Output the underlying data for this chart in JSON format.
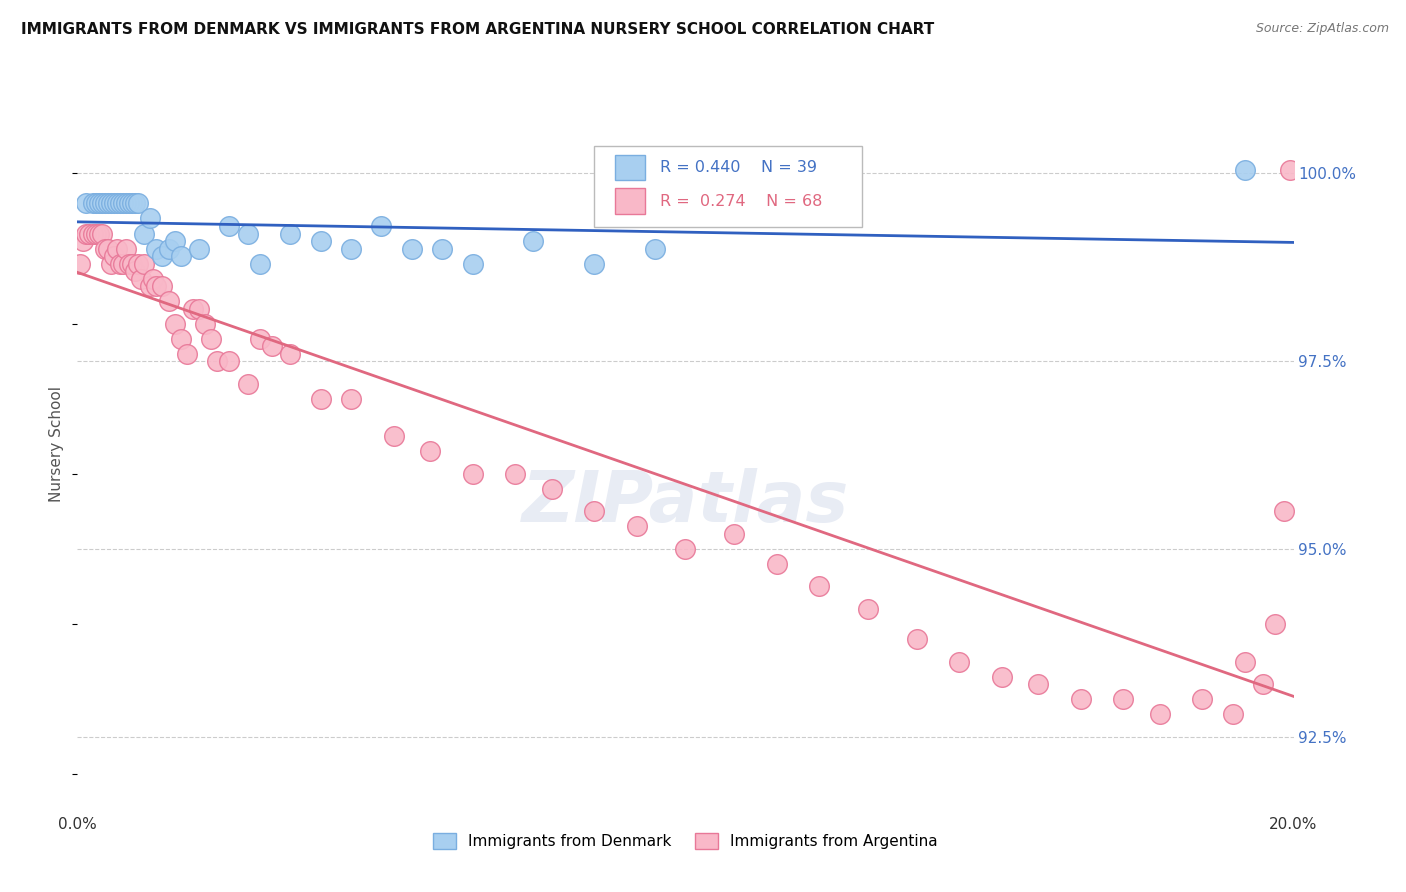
{
  "title": "IMMIGRANTS FROM DENMARK VS IMMIGRANTS FROM ARGENTINA NURSERY SCHOOL CORRELATION CHART",
  "source": "Source: ZipAtlas.com",
  "ylabel": "Nursery School",
  "yticks": [
    92.5,
    95.0,
    97.5,
    100.0
  ],
  "ytick_labels": [
    "92.5%",
    "95.0%",
    "97.5%",
    "100.0%"
  ],
  "xlim": [
    0.0,
    20.0
  ],
  "ylim": [
    91.5,
    101.3
  ],
  "denmark_color": "#a8cff0",
  "denmark_edge": "#7aaee0",
  "argentina_color": "#f9b8c8",
  "argentina_edge": "#e87898",
  "denmark_R": 0.44,
  "denmark_N": 39,
  "argentina_R": 0.274,
  "argentina_N": 68,
  "trend_denmark_color": "#3060c0",
  "trend_argentina_color": "#e06880",
  "denmark_x": [
    0.15,
    0.25,
    0.3,
    0.35,
    0.4,
    0.45,
    0.5,
    0.55,
    0.6,
    0.65,
    0.7,
    0.75,
    0.8,
    0.85,
    0.9,
    0.95,
    1.0,
    1.1,
    1.2,
    1.3,
    1.4,
    1.5,
    1.6,
    1.7,
    2.0,
    2.5,
    2.8,
    3.0,
    3.5,
    4.0,
    4.5,
    5.0,
    5.5,
    6.0,
    6.5,
    7.5,
    8.5,
    9.5,
    19.2
  ],
  "denmark_y": [
    99.6,
    99.6,
    99.6,
    99.6,
    99.6,
    99.6,
    99.6,
    99.6,
    99.6,
    99.6,
    99.6,
    99.6,
    99.6,
    99.6,
    99.6,
    99.6,
    99.6,
    99.2,
    99.4,
    99.0,
    98.9,
    99.0,
    99.1,
    98.9,
    99.0,
    99.3,
    99.2,
    98.8,
    99.2,
    99.1,
    99.0,
    99.3,
    99.0,
    99.0,
    98.8,
    99.1,
    98.8,
    99.0,
    100.05
  ],
  "argentina_x": [
    0.05,
    0.1,
    0.15,
    0.2,
    0.25,
    0.3,
    0.35,
    0.4,
    0.45,
    0.5,
    0.55,
    0.6,
    0.65,
    0.7,
    0.75,
    0.8,
    0.85,
    0.9,
    0.95,
    1.0,
    1.05,
    1.1,
    1.2,
    1.25,
    1.3,
    1.4,
    1.5,
    1.6,
    1.7,
    1.8,
    1.9,
    2.0,
    2.1,
    2.2,
    2.3,
    2.5,
    2.8,
    3.0,
    3.2,
    3.5,
    4.0,
    4.5,
    5.2,
    5.8,
    6.5,
    7.2,
    7.8,
    8.5,
    9.2,
    10.0,
    10.8,
    11.5,
    12.2,
    13.0,
    13.8,
    14.5,
    15.2,
    15.8,
    16.5,
    17.2,
    17.8,
    18.5,
    19.0,
    19.2,
    19.5,
    19.7,
    19.85,
    19.95
  ],
  "argentina_y": [
    98.8,
    99.1,
    99.2,
    99.2,
    99.2,
    99.2,
    99.2,
    99.2,
    99.0,
    99.0,
    98.8,
    98.9,
    99.0,
    98.8,
    98.8,
    99.0,
    98.8,
    98.8,
    98.7,
    98.8,
    98.6,
    98.8,
    98.5,
    98.6,
    98.5,
    98.5,
    98.3,
    98.0,
    97.8,
    97.6,
    98.2,
    98.2,
    98.0,
    97.8,
    97.5,
    97.5,
    97.2,
    97.8,
    97.7,
    97.6,
    97.0,
    97.0,
    96.5,
    96.3,
    96.0,
    96.0,
    95.8,
    95.5,
    95.3,
    95.0,
    95.2,
    94.8,
    94.5,
    94.2,
    93.8,
    93.5,
    93.3,
    93.2,
    93.0,
    93.0,
    92.8,
    93.0,
    92.8,
    93.5,
    93.2,
    94.0,
    95.5,
    100.05
  ]
}
